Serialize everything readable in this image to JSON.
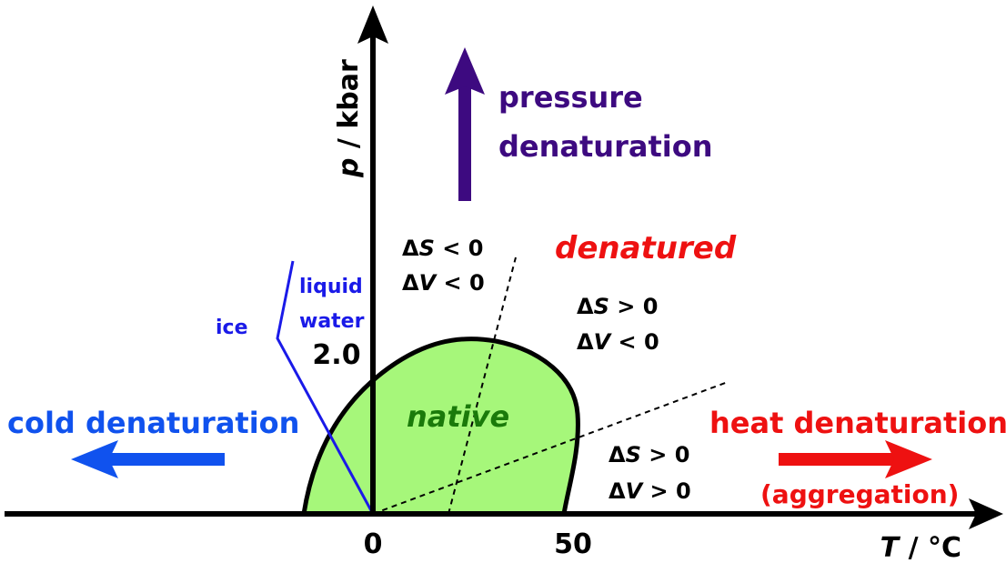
{
  "axes": {
    "x_symbol": "T",
    "x_unit": " / °C",
    "y_symbol": "p",
    "y_unit": " / kbar",
    "x_ticks": [
      "0",
      "50"
    ],
    "y_ticks": [
      "2.0"
    ]
  },
  "regions": {
    "native": "native",
    "denatured": "denatured"
  },
  "processes": {
    "pressure_line1": "pressure",
    "pressure_line2": "denaturation",
    "cold": "cold denaturation",
    "heat": "heat denaturation",
    "heat_note": "(aggregation)"
  },
  "water": {
    "ice": "ice",
    "liquid_line1": "liquid",
    "liquid_line2": "water"
  },
  "thermo": {
    "upper_left": [
      {
        "prefix": "Δ",
        "symbol": "S",
        "relation": " < 0"
      },
      {
        "prefix": "Δ",
        "symbol": "V",
        "relation": " < 0"
      }
    ],
    "upper_right": [
      {
        "prefix": "Δ",
        "symbol": "S",
        "relation": " > 0"
      },
      {
        "prefix": "Δ",
        "symbol": "V",
        "relation": " < 0"
      }
    ],
    "lower_right": [
      {
        "prefix": "Δ",
        "symbol": "S",
        "relation": " > 0"
      },
      {
        "prefix": "Δ",
        "symbol": "V",
        "relation": " > 0"
      }
    ]
  },
  "colors": {
    "native_fill": "#a6f77a",
    "native_text": "#1a7a0a",
    "pressure": "#3d0a80",
    "cold": "#1052ee",
    "heat": "#ee1111",
    "water_line": "#1a1ae8",
    "axes": "#000000"
  }
}
